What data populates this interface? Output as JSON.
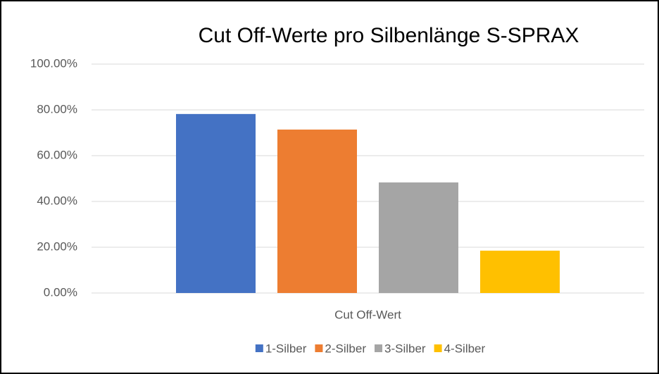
{
  "chart_data": {
    "type": "bar",
    "title": "Cut Off-Werte pro Silbenlänge S-SPRAX",
    "categories": [
      "Cut Off-Wert"
    ],
    "series": [
      {
        "name": "1-Silber",
        "color": "#4472c4",
        "values": [
          78.2
        ]
      },
      {
        "name": "2-Silber",
        "color": "#ed7d31",
        "values": [
          71.4
        ]
      },
      {
        "name": "3-Silber",
        "color": "#a5a5a5",
        "values": [
          48.3
        ]
      },
      {
        "name": "4-Silber",
        "color": "#ffc000",
        "values": [
          18.5
        ]
      }
    ],
    "ylim": [
      0,
      100
    ],
    "yticks": [
      {
        "value": 0,
        "label": "0.00%"
      },
      {
        "value": 20,
        "label": "20.00%"
      },
      {
        "value": 40,
        "label": "40.00%"
      },
      {
        "value": 60,
        "label": "60.00%"
      },
      {
        "value": 80,
        "label": "80.00%"
      },
      {
        "value": 100,
        "label": "100.00%"
      }
    ],
    "grid": true,
    "legend": "bottom"
  }
}
